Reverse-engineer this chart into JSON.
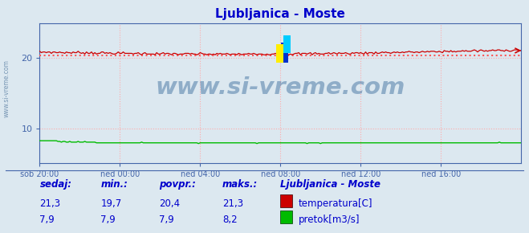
{
  "title": "Ljubljanica - Moste",
  "title_color": "#0000cc",
  "fig_bg_color": "#dce8f0",
  "plot_bg_color": "#dce8f0",
  "grid_color": "#ffaaaa",
  "grid_style": ":",
  "x_ticks_labels": [
    "sob 20:00",
    "ned 00:00",
    "ned 04:00",
    "ned 08:00",
    "ned 12:00",
    "ned 16:00"
  ],
  "x_ticks_pos": [
    0.0,
    0.1667,
    0.3333,
    0.5,
    0.6667,
    0.8333
  ],
  "ylim_min": 5,
  "ylim_max": 25,
  "yticks": [
    10,
    20
  ],
  "temp_avg": 20.4,
  "temp_min": 19.7,
  "temp_max": 21.3,
  "temp_current": 21.3,
  "flow_avg": 7.9,
  "flow_min": 7.9,
  "flow_max": 8.2,
  "flow_current": 7.9,
  "temp_color": "#cc0000",
  "flow_color": "#00bb00",
  "avg_line_color": "#ff5555",
  "watermark_text": "www.si-vreme.com",
  "watermark_color": "#336699",
  "left_side_label": "www.si-vreme.com",
  "left_side_color": "#6688aa",
  "legend_title": "Ljubljanica - Moste",
  "legend_title_color": "#0000cc",
  "bottom_label_color": "#0000cc",
  "n_points": 289,
  "logo_yellow": "#ffee00",
  "logo_cyan": "#00ccff",
  "logo_blue": "#0033cc",
  "tick_color": "#4466aa",
  "spine_color": "#4466aa"
}
